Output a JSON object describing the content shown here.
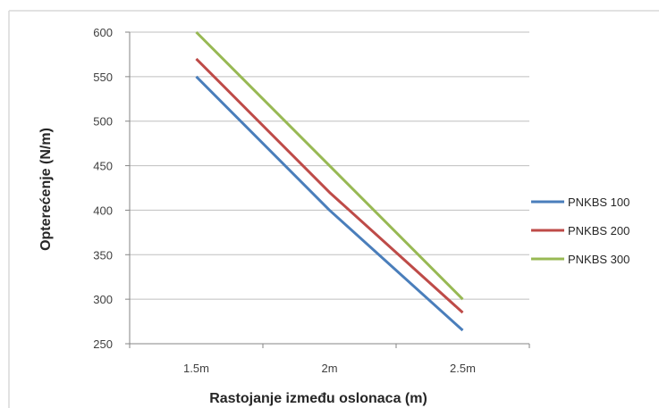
{
  "chart_data": {
    "type": "line",
    "categories": [
      "1.5m",
      "2m",
      "2.5m"
    ],
    "series": [
      {
        "name": "PNKBS 100",
        "values": [
          550,
          400,
          265
        ],
        "color": "#4a7ebb"
      },
      {
        "name": "PNKBS 200",
        "values": [
          570,
          420,
          285
        ],
        "color": "#be4b48"
      },
      {
        "name": "PNKBS 300",
        "values": [
          600,
          450,
          300
        ],
        "color": "#98b954"
      }
    ],
    "xlabel": "Rastojanje između oslonaca (m)",
    "ylabel": "Opterećenje  (N/m)",
    "ylim": [
      250,
      600
    ],
    "yticks": [
      250,
      300,
      350,
      400,
      450,
      500,
      550,
      600
    ],
    "grid": "horizontal",
    "legend_position": "right"
  }
}
